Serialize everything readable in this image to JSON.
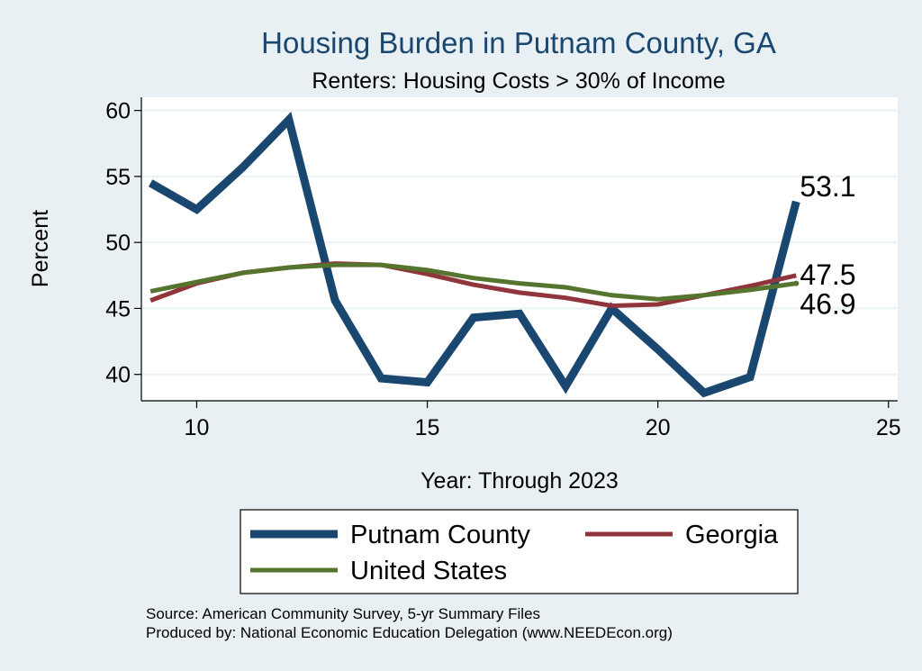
{
  "chart_data": {
    "type": "line",
    "title": "Housing Burden in Putnam County, GA",
    "subtitle": "Renters: Housing Costs > 30% of Income",
    "xlabel": "Year: Through 2023",
    "ylabel": "Percent",
    "xlim": [
      8.8,
      25.2
    ],
    "ylim": [
      38,
      61
    ],
    "xticks": [
      10,
      15,
      20,
      25
    ],
    "yticks": [
      40,
      45,
      50,
      55,
      60
    ],
    "grid": true,
    "x": [
      9,
      10,
      11,
      12,
      13,
      14,
      15,
      16,
      17,
      18,
      19,
      20,
      21,
      22,
      23
    ],
    "series": [
      {
        "name": "Putnam County",
        "color": "#1a476f",
        "values": [
          54.5,
          52.5,
          55.7,
          59.3,
          45.6,
          39.7,
          39.4,
          44.3,
          44.6,
          39.1,
          45.0,
          41.9,
          38.6,
          39.8,
          53.1
        ],
        "end_label": "53.1"
      },
      {
        "name": "Georgia",
        "color": "#90353b",
        "values": [
          45.6,
          46.9,
          47.7,
          48.1,
          48.4,
          48.3,
          47.6,
          46.8,
          46.2,
          45.8,
          45.2,
          45.3,
          46.0,
          46.7,
          47.5
        ],
        "end_label": "47.5"
      },
      {
        "name": "United States",
        "color": "#55752f",
        "values": [
          46.3,
          47.0,
          47.7,
          48.1,
          48.3,
          48.3,
          47.9,
          47.3,
          46.9,
          46.6,
          46.0,
          45.7,
          46.0,
          46.4,
          46.9
        ],
        "end_label": "46.9"
      }
    ],
    "legend": [
      "Putnam County",
      "Georgia",
      "United States"
    ],
    "legend_position": "bottom",
    "notes": [
      "Source: American Community Survey, 5-yr Summary Files",
      "Produced by: National Economic Education Delegation (www.NEEDEcon.org)"
    ]
  }
}
